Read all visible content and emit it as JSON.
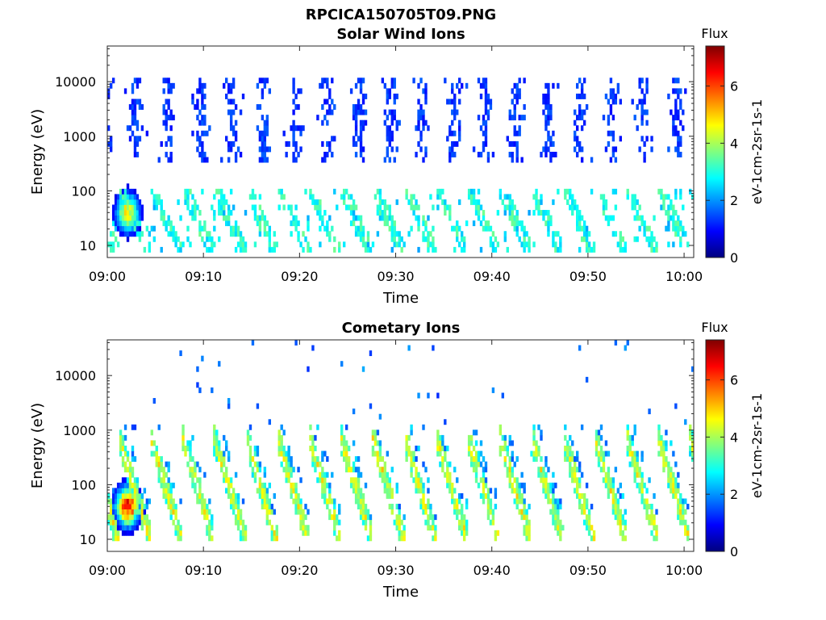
{
  "figure_title": "RPCICA150705T09.PNG",
  "chart_data": [
    {
      "type": "heatmap",
      "title": "Solar Wind Ions",
      "xlabel": "Time",
      "ylabel": "Energy (eV)",
      "x_ticks": [
        "09:00",
        "09:10",
        "09:20",
        "09:30",
        "09:40",
        "09:50",
        "10:00"
      ],
      "x_range": [
        "09:00",
        "10:01"
      ],
      "y_ticks": [
        "10",
        "100",
        "1000",
        "10000"
      ],
      "y_scale": "log",
      "y_range": [
        6,
        45000
      ],
      "colorbar": {
        "title": "Flux",
        "label": "eV-1cm-2sr-1s-1",
        "ticks": [
          "0",
          "2",
          "4",
          "6"
        ],
        "range": [
          0,
          7.4
        ],
        "colormap": "jet"
      },
      "pattern": {
        "repeat_minutes": 3.3,
        "high_energy_bands": {
          "energy_range_eV": [
            300,
            12000
          ],
          "typical_flux": 1.3
        },
        "low_energy_traces": {
          "energy_range_eV": [
            8,
            100
          ],
          "typical_flux": 3.0
        },
        "peak": {
          "time": "09:02",
          "energy_eV": 40,
          "flux": 5.0
        }
      }
    },
    {
      "type": "heatmap",
      "title": "Cometary Ions",
      "xlabel": "Time",
      "ylabel": "Energy (eV)",
      "x_ticks": [
        "09:00",
        "09:10",
        "09:20",
        "09:30",
        "09:40",
        "09:50",
        "10:00"
      ],
      "x_range": [
        "09:00",
        "10:01"
      ],
      "y_ticks": [
        "10",
        "100",
        "1000",
        "10000"
      ],
      "y_scale": "log",
      "y_range": [
        6,
        45000
      ],
      "colorbar": {
        "title": "Flux",
        "label": "eV-1cm-2sr-1s-1",
        "ticks": [
          "0",
          "2",
          "4",
          "6"
        ],
        "range": [
          0,
          7.4
        ],
        "colormap": "jet"
      },
      "pattern": {
        "repeat_minutes": 3.3,
        "dispersed_streaks": {
          "energy_range_eV": [
            10,
            1200
          ],
          "typical_flux": 4.5
        },
        "peak": {
          "time": "09:02",
          "energy_eV": 40,
          "flux": 7.0
        }
      }
    }
  ]
}
